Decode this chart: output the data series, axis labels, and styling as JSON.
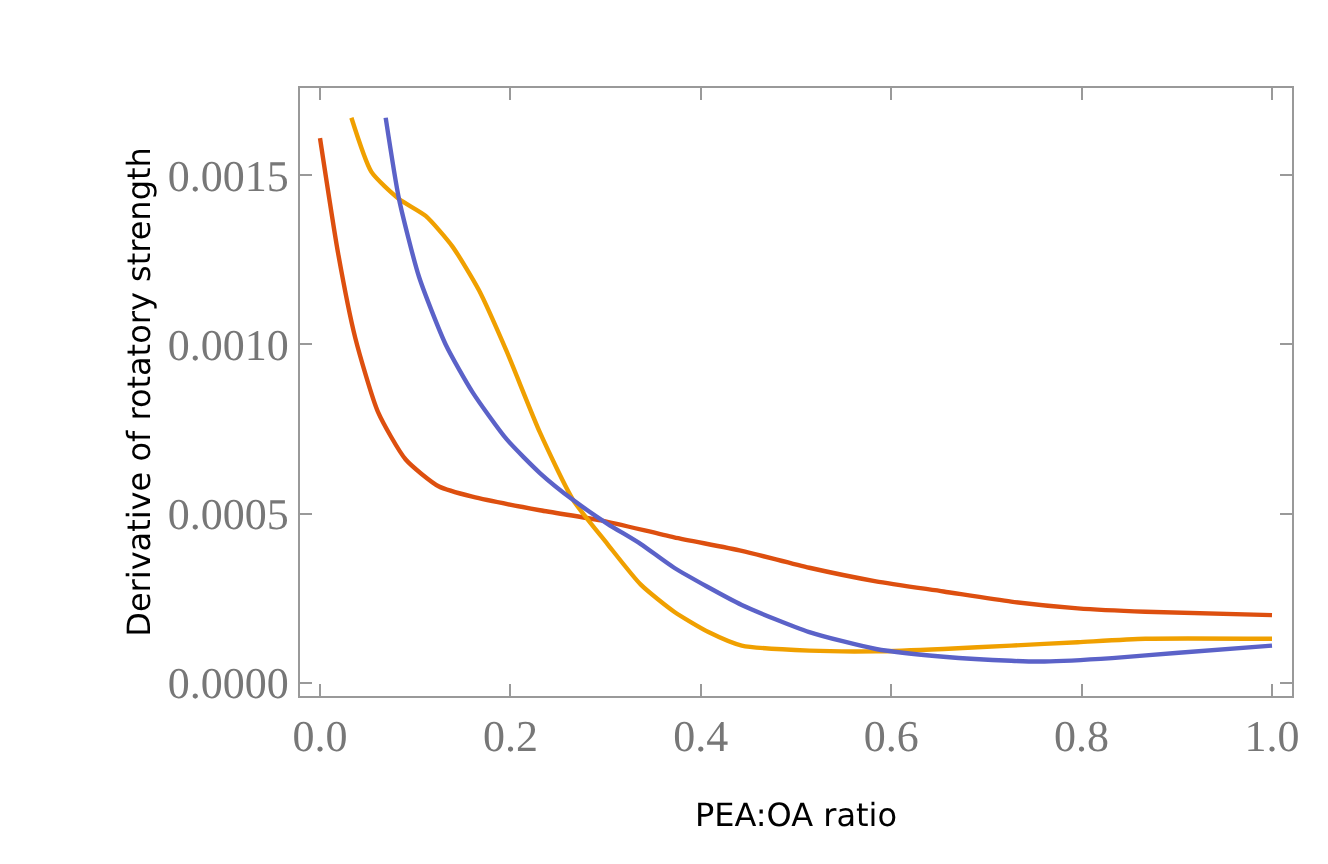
{
  "chart_data": {
    "type": "line",
    "xlabel": "PEA:OA ratio",
    "ylabel": "Derivative of rotatory strength",
    "xlim": [
      -0.021,
      1.021
    ],
    "ylim": [
      -3.9e-05,
      0.001758
    ],
    "xticks": [
      {
        "value": 0,
        "label": "0.0"
      },
      0.2,
      0.4,
      0.6,
      0.8,
      {
        "value": 1,
        "label": "1.0"
      }
    ],
    "yticks": [
      {
        "value": 0,
        "label": "0.0000"
      },
      0.0005,
      {
        "value": 0.001,
        "label": "0.0010"
      },
      0.0015
    ],
    "grid": false,
    "legend": false,
    "marker": "none",
    "line_style": "solid",
    "series": [
      {
        "color": "#dd4f0f",
        "x": [
          0,
          0.019,
          0.037,
          0.061,
          0.09,
          0.125,
          0.16,
          0.231,
          0.295,
          0.372,
          0.443,
          0.514,
          0.584,
          0.655,
          0.726,
          0.796,
          0.867,
          1.0
        ],
        "values": [
          0.00161,
          0.00127,
          0.00102,
          0.0008,
          0.00066,
          0.00058,
          0.00055,
          0.00051,
          0.00048,
          0.00043,
          0.00039,
          0.00034,
          0.0003,
          0.00027,
          0.00024,
          0.00022,
          0.00021,
          0.0002
        ]
      },
      {
        "color": "#f0a000",
        "x": [
          0.033,
          0.054,
          0.083,
          0.111,
          0.139,
          0.167,
          0.196,
          0.231,
          0.266,
          0.302,
          0.337,
          0.372,
          0.408,
          0.443,
          0.514,
          0.584,
          0.655,
          0.726,
          0.796,
          0.867,
          1.0
        ],
        "values": [
          0.00167,
          0.00151,
          0.00143,
          0.00138,
          0.00129,
          0.00116,
          0.00098,
          0.00074,
          0.00054,
          0.00041,
          0.00029,
          0.00021,
          0.00015,
          0.00011,
          9.5e-05,
          9.3e-05,
          0.0001,
          0.00011,
          0.00012,
          0.00013,
          0.00013
        ]
      },
      {
        "color": "#5b62c8",
        "x": [
          0.069,
          0.083,
          0.104,
          0.132,
          0.16,
          0.196,
          0.231,
          0.266,
          0.302,
          0.337,
          0.372,
          0.443,
          0.514,
          0.584,
          0.655,
          0.726,
          0.761,
          0.832,
          0.902,
          1.0
        ],
        "values": [
          0.00167,
          0.00143,
          0.0012,
          0.001,
          0.00086,
          0.00072,
          0.00062,
          0.00054,
          0.00047,
          0.00041,
          0.00034,
          0.00023,
          0.00015,
          0.0001,
          7.7e-05,
          6.5e-05,
          6.3e-05,
          7.3e-05,
          8.9e-05,
          0.00011
        ]
      }
    ]
  }
}
